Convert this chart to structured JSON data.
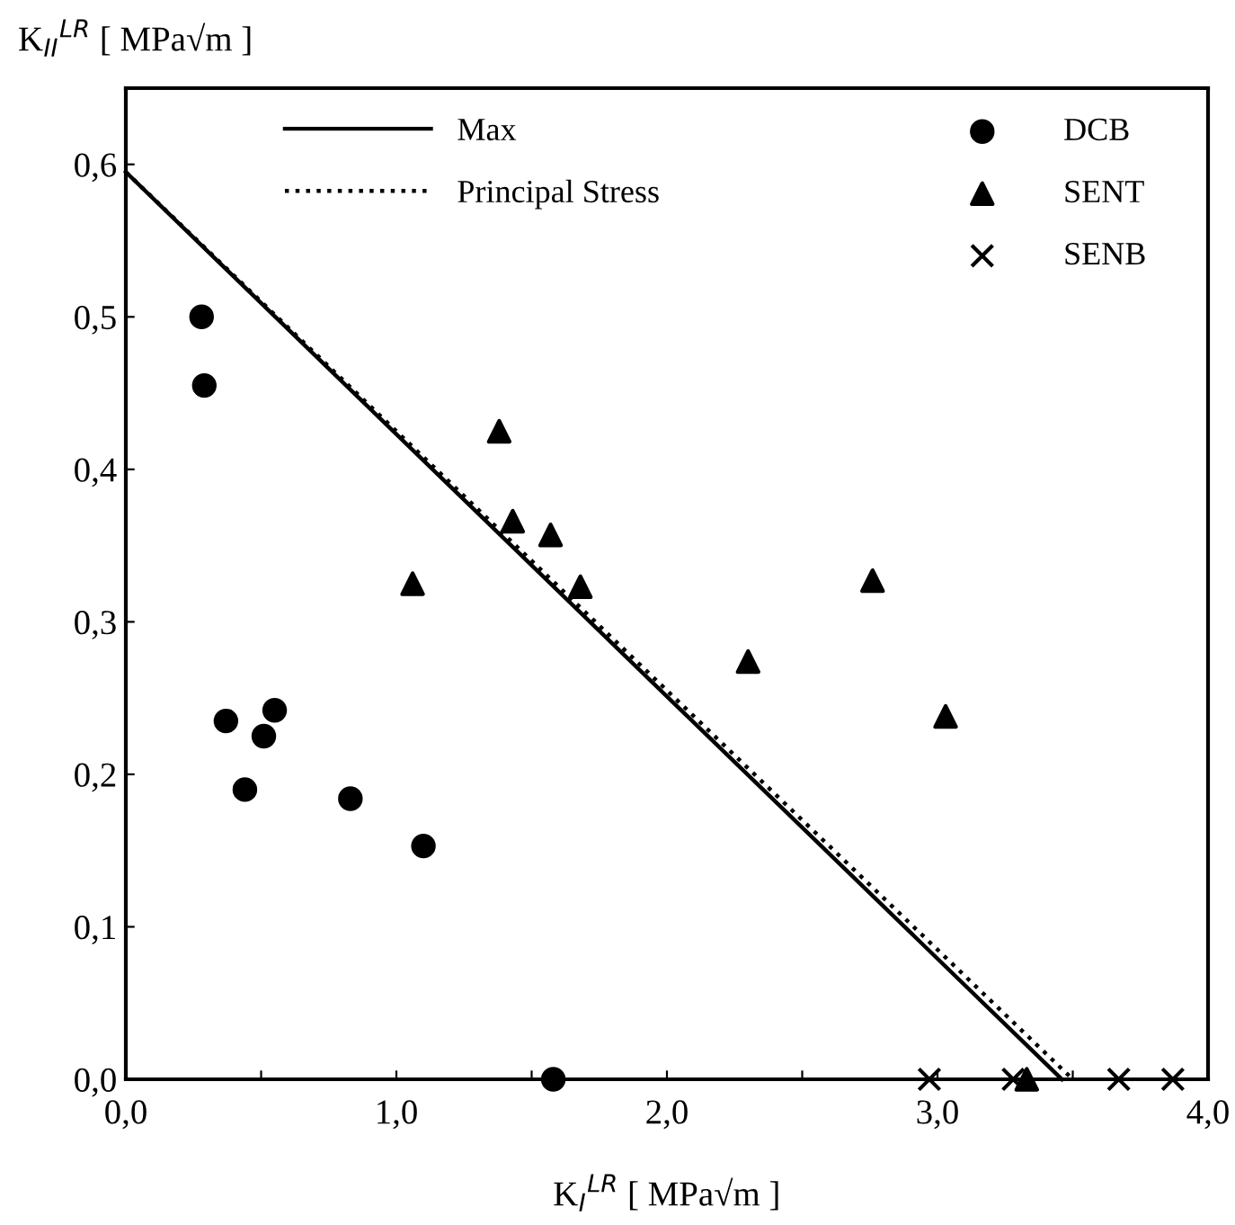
{
  "chart_data": {
    "type": "scatter",
    "xlabel": "K$_{I}$$^{LR}$ [ MPa√m ]",
    "ylabel": "K$_{II}$$^{LR}$ [ MPa√m ]",
    "xlim": [
      0,
      4
    ],
    "ylim": [
      0,
      0.65
    ],
    "xticks": [
      {
        "value": 0,
        "label": "0,0"
      },
      {
        "value": 0.5,
        "label": null
      },
      {
        "value": 1,
        "label": "1,0"
      },
      {
        "value": 1.5,
        "label": null
      },
      {
        "value": 2,
        "label": "2,0"
      },
      {
        "value": 2.5,
        "label": null
      },
      {
        "value": 3,
        "label": "3,0"
      },
      {
        "value": 3.5,
        "label": null
      },
      {
        "value": 4,
        "label": "4,0"
      }
    ],
    "yticks": [
      {
        "value": 0,
        "label": "0,0"
      },
      {
        "value": 0.1,
        "label": "0,1"
      },
      {
        "value": 0.2,
        "label": "0,2"
      },
      {
        "value": 0.3,
        "label": "0,3"
      },
      {
        "value": 0.4,
        "label": "0,4"
      },
      {
        "value": 0.5,
        "label": "0,5"
      },
      {
        "value": 0.6,
        "label": "0,6"
      }
    ],
    "grid": false,
    "legend": "top",
    "series": [
      {
        "name": "Max",
        "type": "line",
        "line_style": "solid",
        "color": "#000000",
        "x": [
          0,
          3.46
        ],
        "values": [
          0.595,
          0
        ]
      },
      {
        "name": "Principal Stress",
        "type": "line",
        "line_style": "dotted",
        "color": "#000000",
        "x": [
          0,
          3.5
        ],
        "values": [
          0.595,
          0
        ]
      },
      {
        "name": "DCB",
        "marker": "circle",
        "color": "#000000",
        "x": [
          0.28,
          0.29,
          0.37,
          0.55,
          0.51,
          0.44,
          0.83,
          1.1,
          1.58
        ],
        "values": [
          0.5,
          0.455,
          0.235,
          0.242,
          0.225,
          0.19,
          0.184,
          0.153,
          0
        ]
      },
      {
        "name": "SENT",
        "marker": "triangle",
        "color": "#000000",
        "x": [
          1.38,
          1.43,
          1.57,
          1.68,
          1.06,
          2.3,
          2.76,
          3.03,
          3.33
        ],
        "values": [
          0.425,
          0.366,
          0.357,
          0.323,
          0.325,
          0.274,
          0.327,
          0.238,
          0
        ]
      },
      {
        "name": "SENB",
        "marker": "cross",
        "color": "#000000",
        "x": [
          2.97,
          3.28,
          3.67,
          3.87
        ],
        "values": [
          0,
          0,
          0,
          0
        ]
      }
    ]
  }
}
